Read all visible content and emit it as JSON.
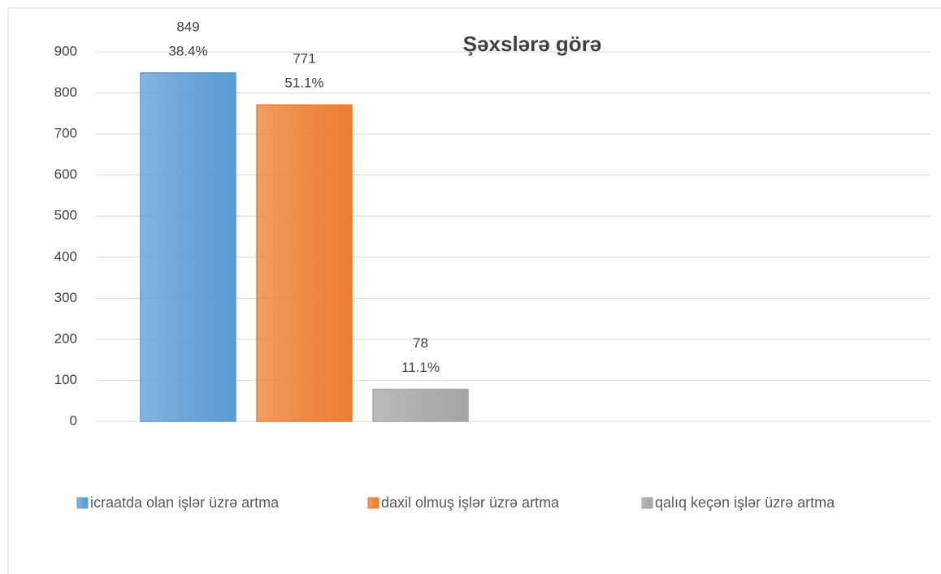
{
  "chart_data": {
    "type": "bar",
    "title": "Şəxslərə görə",
    "series": [
      {
        "name": "icraatda olan işlər üzrə artma",
        "color": "#5b9bd5",
        "values": [
          849
        ],
        "share_labels": [
          "38.4%"
        ]
      },
      {
        "name": "daxil olmuş işlər üzrə artma",
        "color": "#ed7d31",
        "values": [
          771
        ],
        "share_labels": [
          "51.1%"
        ]
      },
      {
        "name": "qalıq keçən işlər üzrə artma",
        "color": "#a5a5a5",
        "values": [
          78
        ],
        "share_labels": [
          "11.1%"
        ]
      }
    ],
    "ylim": [
      0,
      900
    ],
    "yticks": [
      0,
      100,
      200,
      300,
      400,
      500,
      600,
      700,
      800,
      900
    ],
    "grid": true,
    "legend": "bottom"
  }
}
